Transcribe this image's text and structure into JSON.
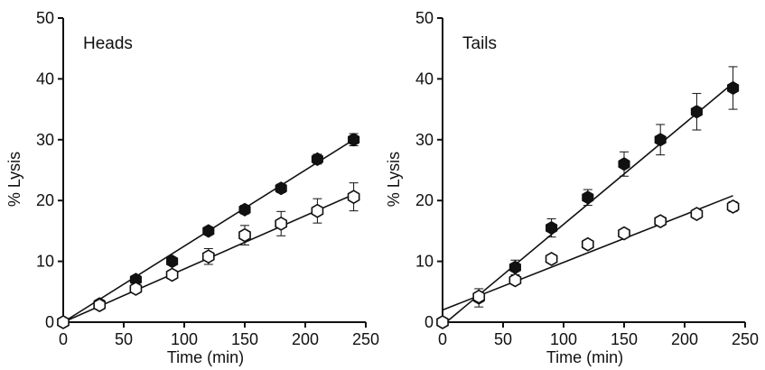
{
  "chart_data": [
    {
      "type": "scatter",
      "title": "Heads",
      "xlabel": "Time (min)",
      "ylabel": "% Lysis",
      "xlim": [
        0,
        250
      ],
      "ylim": [
        0,
        50
      ],
      "xticks": [
        0,
        50,
        100,
        150,
        200,
        250
      ],
      "yticks": [
        0,
        10,
        20,
        30,
        40,
        50
      ],
      "grid": false,
      "series": [
        {
          "marker": "filled-hexagon",
          "color": "#111111",
          "x": [
            0,
            30,
            60,
            90,
            120,
            150,
            180,
            210,
            240
          ],
          "y": [
            0,
            3.0,
            7.0,
            10.0,
            15.0,
            18.5,
            22.0,
            26.8,
            30.0
          ],
          "err": [
            0,
            0.5,
            0.6,
            0.6,
            0.6,
            0.7,
            0.7,
            0.8,
            1.0
          ],
          "fit": {
            "x": [
              0,
              240
            ],
            "y": [
              0,
              30.0
            ]
          }
        },
        {
          "marker": "open-hexagon",
          "color": "#111111",
          "x": [
            0,
            30,
            60,
            90,
            120,
            150,
            180,
            210,
            240
          ],
          "y": [
            0,
            2.8,
            5.5,
            7.8,
            10.8,
            14.3,
            16.2,
            18.3,
            20.6
          ],
          "err": [
            0,
            0.5,
            0.6,
            0.7,
            1.3,
            1.6,
            2.0,
            2.0,
            2.3
          ],
          "fit": {
            "x": [
              0,
              240
            ],
            "y": [
              0,
              21.0
            ]
          }
        }
      ]
    },
    {
      "type": "scatter",
      "title": "Tails",
      "xlabel": "Time (min)",
      "ylabel": "% Lysis",
      "xlim": [
        0,
        250
      ],
      "ylim": [
        0,
        50
      ],
      "xticks": [
        0,
        50,
        100,
        150,
        200,
        250
      ],
      "yticks": [
        0,
        10,
        20,
        30,
        40,
        50
      ],
      "grid": false,
      "series": [
        {
          "marker": "filled-hexagon",
          "color": "#111111",
          "x": [
            0,
            30,
            60,
            90,
            120,
            150,
            180,
            210,
            240
          ],
          "y": [
            0,
            4.0,
            9.0,
            15.5,
            20.5,
            26.0,
            30.0,
            34.6,
            38.5
          ],
          "err": [
            0,
            1.5,
            1.2,
            1.5,
            1.3,
            2.0,
            2.5,
            3.0,
            3.5
          ],
          "fit": {
            "x": [
              0,
              240
            ],
            "y": [
              -0.5,
              39.3
            ]
          }
        },
        {
          "marker": "open-hexagon",
          "color": "#111111",
          "x": [
            0,
            30,
            60,
            90,
            120,
            150,
            180,
            210,
            240
          ],
          "y": [
            0,
            4.2,
            6.9,
            10.4,
            12.8,
            14.6,
            16.6,
            17.8,
            19.0
          ],
          "err": [
            0,
            0.5,
            0.5,
            0.5,
            0.6,
            0.6,
            0.7,
            0.7,
            0.8
          ],
          "fit": {
            "x": [
              0,
              240
            ],
            "y": [
              2.0,
              20.8
            ]
          }
        }
      ]
    }
  ]
}
